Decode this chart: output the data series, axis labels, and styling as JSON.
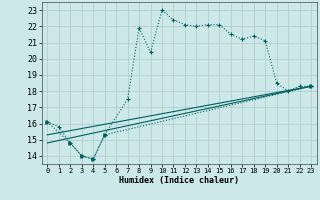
{
  "xlabel": "Humidex (Indice chaleur)",
  "background_color": "#cce8e8",
  "grid_color": "#b0c8c8",
  "line_color": "#006060",
  "xlim": [
    -0.5,
    23.5
  ],
  "ylim": [
    13.5,
    23.5
  ],
  "yticks": [
    14,
    15,
    16,
    17,
    18,
    19,
    20,
    21,
    22,
    23
  ],
  "xticks": [
    0,
    1,
    2,
    3,
    4,
    5,
    6,
    7,
    8,
    9,
    10,
    11,
    12,
    13,
    14,
    15,
    16,
    17,
    18,
    19,
    20,
    21,
    22,
    23
  ],
  "line1_x": [
    0,
    1,
    2,
    3,
    4,
    5,
    7,
    8,
    9,
    10,
    11,
    12,
    13,
    14,
    15,
    16,
    17,
    18,
    19,
    20,
    21,
    22,
    23
  ],
  "line1_y": [
    16.1,
    15.8,
    14.8,
    14.0,
    13.8,
    15.3,
    17.5,
    21.9,
    20.4,
    23.0,
    22.4,
    22.1,
    22.0,
    22.1,
    22.1,
    21.5,
    21.2,
    21.4,
    21.1,
    18.5,
    18.0,
    18.3,
    18.3
  ],
  "line2_x": [
    0,
    2,
    3,
    4,
    5,
    23
  ],
  "line2_y": [
    16.1,
    14.8,
    14.0,
    13.8,
    15.3,
    18.3
  ],
  "line3_x": [
    0,
    23
  ],
  "line3_y": [
    15.3,
    18.3
  ],
  "line4_x": [
    0,
    23
  ],
  "line4_y": [
    14.8,
    18.3
  ]
}
